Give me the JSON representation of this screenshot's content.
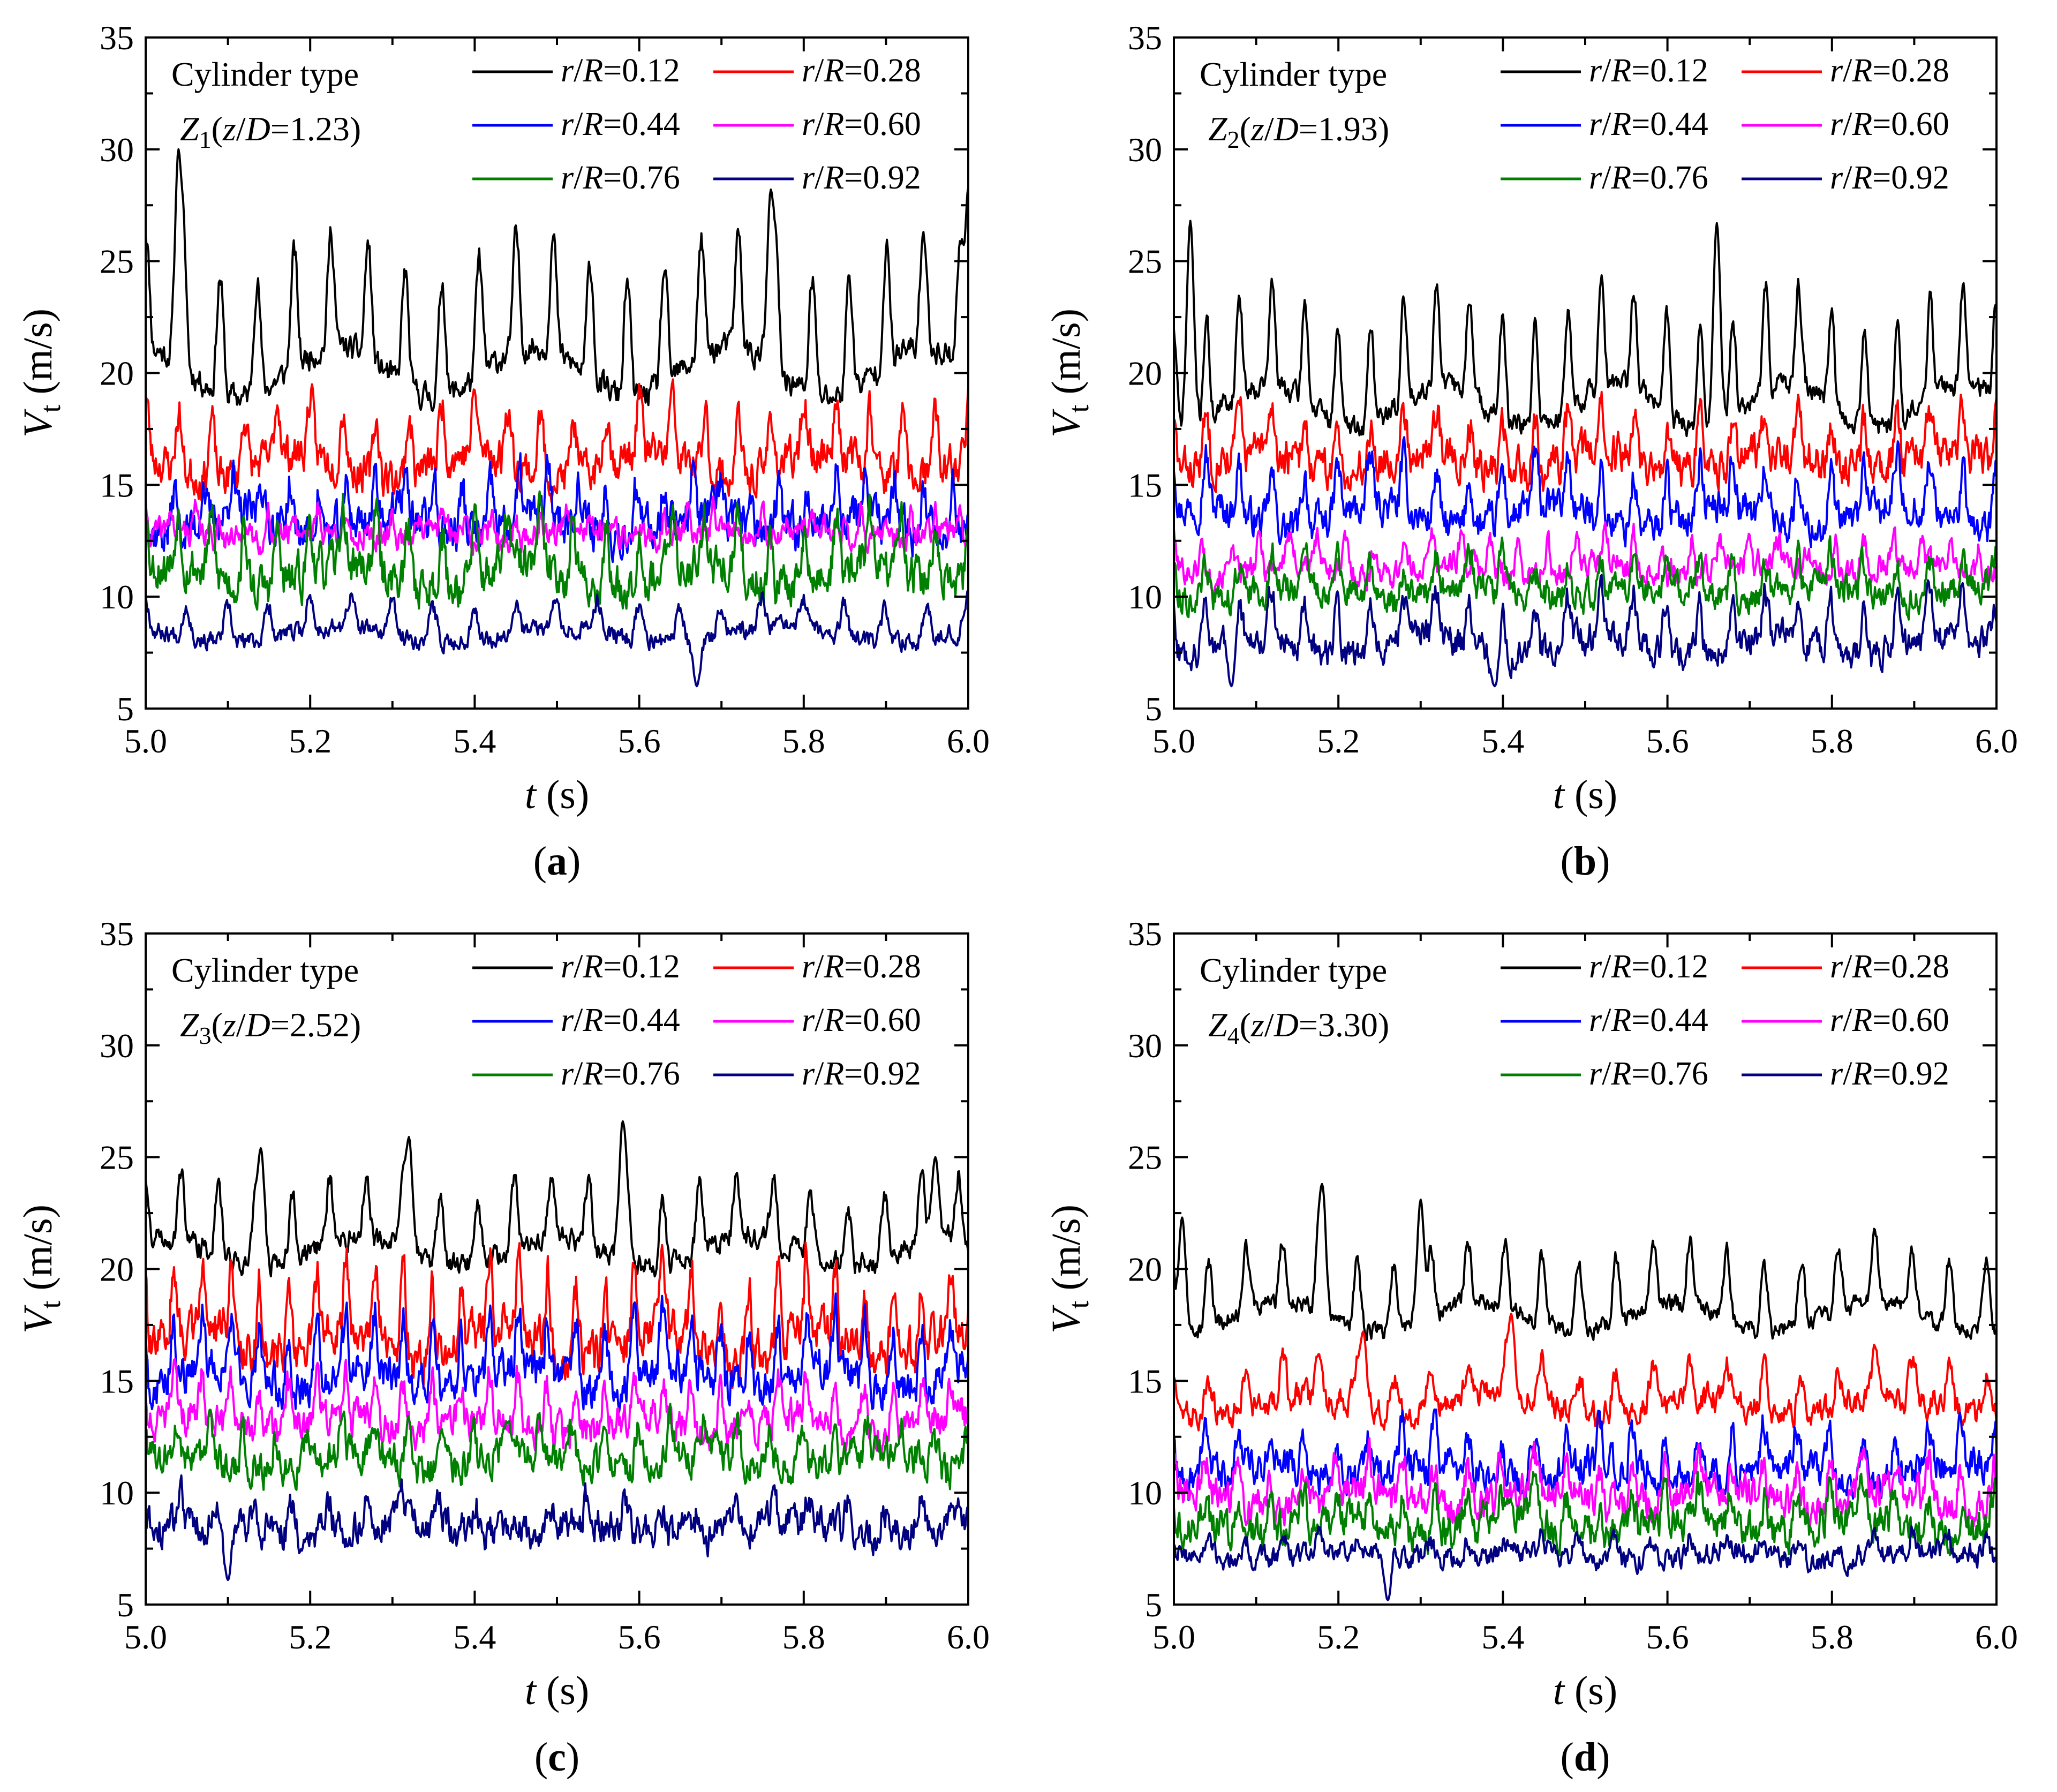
{
  "colors": {
    "r012": "#000000",
    "r028": "#ff0000",
    "r044": "#0000ff",
    "r060": "#ff00ff",
    "r076": "#008000",
    "r092": "#000080"
  },
  "chart_data": [
    {
      "type": "line",
      "panel_label": "(a)",
      "label_letter": "a",
      "annotation_line1": "Cylinder type",
      "annotation_line2": {
        "var": "Z",
        "sub": "1",
        "open": "(",
        "z": "z",
        "slash": "/",
        "D": "D",
        "eq": "=1.23)"
      },
      "xlabel": {
        "var": "t",
        "unit": " (s)"
      },
      "ylabel": {
        "var": "V",
        "sub": "t",
        "unit": " (m/s)"
      },
      "xlim": [
        5.0,
        6.0
      ],
      "ylim": [
        5,
        35
      ],
      "xticks": [
        "5.0",
        "5.2",
        "5.4",
        "5.6",
        "5.8",
        "6.0"
      ],
      "yticks": [
        "5",
        "10",
        "15",
        "20",
        "25",
        "30",
        "35"
      ],
      "legend_position": "top-right",
      "series": [
        {
          "name": "r/R=0.12",
          "key": "r012",
          "mean": 21.5,
          "amp": 3.2,
          "period": 0.045,
          "noise": 0.6,
          "seed": 11,
          "peaks": [
            [
              5.04,
              30.0
            ],
            [
              5.76,
              28.2
            ],
            [
              6.0,
              28.3
            ]
          ]
        },
        {
          "name": "r/R=0.28",
          "key": "r028",
          "mean": 16.6,
          "amp": 1.6,
          "period": 0.04,
          "noise": 0.9,
          "seed": 23,
          "peaks": []
        },
        {
          "name": "r/R=0.44",
          "key": "r044",
          "mean": 13.8,
          "amp": 1.2,
          "period": 0.035,
          "noise": 1.0,
          "seed": 37,
          "peaks": []
        },
        {
          "name": "r/R=0.60",
          "key": "r060",
          "mean": 13.0,
          "amp": 0.6,
          "period": 0.03,
          "noise": 0.6,
          "seed": 41,
          "peaks": []
        },
        {
          "name": "r/R=0.76",
          "key": "r076",
          "mean": 11.6,
          "amp": 1.5,
          "period": 0.04,
          "noise": 1.0,
          "seed": 53,
          "peaks": []
        },
        {
          "name": "r/R=0.92",
          "key": "r092",
          "mean": 8.7,
          "amp": 0.9,
          "period": 0.05,
          "noise": 0.4,
          "seed": 67,
          "peaks": [
            [
              5.67,
              6.0
            ]
          ]
        }
      ]
    },
    {
      "type": "line",
      "panel_label": "(b)",
      "label_letter": "b",
      "annotation_line1": "Cylinder type",
      "annotation_line2": {
        "var": "Z",
        "sub": "2",
        "open": "(",
        "z": "z",
        "slash": "/",
        "D": "D",
        "eq": "=1.93)"
      },
      "xlabel": {
        "var": "t",
        "unit": " (s)"
      },
      "ylabel": {
        "var": "V",
        "sub": "t",
        "unit": " (m/s)"
      },
      "xlim": [
        5.0,
        6.0
      ],
      "ylim": [
        5,
        35
      ],
      "xticks": [
        "5.0",
        "5.2",
        "5.4",
        "5.6",
        "5.8",
        "6.0"
      ],
      "yticks": [
        "5",
        "10",
        "15",
        "20",
        "25",
        "30",
        "35"
      ],
      "legend_position": "top-right",
      "series": [
        {
          "name": "r/R=0.12",
          "key": "r012",
          "mean": 19.8,
          "amp": 2.8,
          "period": 0.04,
          "noise": 0.5,
          "seed": 71,
          "peaks": [
            [
              5.02,
              26.8
            ],
            [
              5.66,
              26.7
            ]
          ]
        },
        {
          "name": "r/R=0.28",
          "key": "r028",
          "mean": 16.6,
          "amp": 1.3,
          "period": 0.04,
          "noise": 0.9,
          "seed": 83,
          "peaks": []
        },
        {
          "name": "r/R=0.44",
          "key": "r044",
          "mean": 14.2,
          "amp": 1.4,
          "period": 0.04,
          "noise": 0.8,
          "seed": 97,
          "peaks": []
        },
        {
          "name": "r/R=0.60",
          "key": "r060",
          "mean": 11.6,
          "amp": 0.8,
          "period": 0.035,
          "noise": 0.6,
          "seed": 101,
          "peaks": []
        },
        {
          "name": "r/R=0.76",
          "key": "r076",
          "mean": 10.6,
          "amp": 0.9,
          "period": 0.04,
          "noise": 0.7,
          "seed": 113,
          "peaks": []
        },
        {
          "name": "r/R=0.92",
          "key": "r092",
          "mean": 8.4,
          "amp": 1.3,
          "period": 0.04,
          "noise": 0.7,
          "seed": 127,
          "peaks": [
            [
              5.07,
              6.0
            ],
            [
              5.39,
              6.0
            ]
          ]
        }
      ]
    },
    {
      "type": "line",
      "panel_label": "(c)",
      "label_letter": "c",
      "annotation_line1": "Cylinder type",
      "annotation_line2": {
        "var": "Z",
        "sub": "3",
        "open": "(",
        "z": "z",
        "slash": "/",
        "D": "D",
        "eq": "=2.52)"
      },
      "xlabel": {
        "var": "t",
        "unit": " (s)"
      },
      "ylabel": {
        "var": "V",
        "sub": "t",
        "unit": " (m/s)"
      },
      "xlim": [
        5.0,
        6.0
      ],
      "ylim": [
        5,
        35
      ],
      "xticks": [
        "5.0",
        "5.2",
        "5.4",
        "5.6",
        "5.8",
        "6.0"
      ],
      "yticks": [
        "5",
        "10",
        "15",
        "20",
        "25",
        "30",
        "35"
      ],
      "legend_position": "top-right",
      "series": [
        {
          "name": "r/R=0.12",
          "key": "r012",
          "mean": 21.6,
          "amp": 1.8,
          "period": 0.045,
          "noise": 0.5,
          "seed": 131,
          "peaks": [
            [
              5.14,
              25.4
            ],
            [
              5.32,
              25.9
            ],
            [
              5.58,
              26.6
            ],
            [
              5.96,
              25.0
            ]
          ]
        },
        {
          "name": "r/R=0.28",
          "key": "r028",
          "mean": 17.6,
          "amp": 2.0,
          "period": 0.035,
          "noise": 1.0,
          "seed": 139,
          "peaks": []
        },
        {
          "name": "r/R=0.44",
          "key": "r044",
          "mean": 15.8,
          "amp": 1.6,
          "period": 0.035,
          "noise": 0.9,
          "seed": 149,
          "peaks": []
        },
        {
          "name": "r/R=0.60",
          "key": "r060",
          "mean": 13.6,
          "amp": 1.2,
          "period": 0.035,
          "noise": 0.8,
          "seed": 151,
          "peaks": []
        },
        {
          "name": "r/R=0.76",
          "key": "r076",
          "mean": 11.8,
          "amp": 1.0,
          "period": 0.04,
          "noise": 0.8,
          "seed": 163,
          "peaks": []
        },
        {
          "name": "r/R=0.92",
          "key": "r092",
          "mean": 8.7,
          "amp": 0.7,
          "period": 0.045,
          "noise": 0.8,
          "seed": 173,
          "peaks": [
            [
              5.1,
              6.1
            ]
          ]
        }
      ]
    },
    {
      "type": "line",
      "panel_label": "(d)",
      "label_letter": "d",
      "annotation_line1": "Cylinder type",
      "annotation_line2": {
        "var": "Z",
        "sub": "4",
        "open": "(",
        "z": "z",
        "slash": "/",
        "D": "D",
        "eq": "=3.30)"
      },
      "xlabel": {
        "var": "t",
        "unit": " (s)"
      },
      "ylabel": {
        "var": "V",
        "sub": "t",
        "unit": " (m/s)"
      },
      "xlim": [
        5.0,
        6.0
      ],
      "ylim": [
        5,
        35
      ],
      "xticks": [
        "5.0",
        "5.2",
        "5.4",
        "5.6",
        "5.8",
        "6.0"
      ],
      "yticks": [
        "5",
        "10",
        "15",
        "20",
        "25",
        "30",
        "35"
      ],
      "legend_position": "top-right",
      "series": [
        {
          "name": "r/R=0.12",
          "key": "r012",
          "mean": 18.7,
          "amp": 1.8,
          "period": 0.045,
          "noise": 0.4,
          "seed": 181,
          "peaks": [
            [
              5.01,
              22.3
            ],
            [
              5.18,
              23.8
            ],
            [
              5.3,
              23.1
            ]
          ]
        },
        {
          "name": "r/R=0.28",
          "key": "r028",
          "mean": 14.4,
          "amp": 1.1,
          "period": 0.045,
          "noise": 0.6,
          "seed": 191,
          "peaks": [
            [
              5.23,
              17.2
            ],
            [
              5.41,
              18.0
            ]
          ]
        },
        {
          "name": "r/R=0.44",
          "key": "r044",
          "mean": 11.4,
          "amp": 1.1,
          "period": 0.04,
          "noise": 0.8,
          "seed": 193,
          "peaks": []
        },
        {
          "name": "r/R=0.60",
          "key": "r060",
          "mean": 10.2,
          "amp": 1.0,
          "period": 0.04,
          "noise": 0.8,
          "seed": 197,
          "peaks": []
        },
        {
          "name": "r/R=0.76",
          "key": "r076",
          "mean": 8.9,
          "amp": 0.9,
          "period": 0.04,
          "noise": 0.8,
          "seed": 199,
          "peaks": []
        },
        {
          "name": "r/R=0.92",
          "key": "r092",
          "mean": 7.4,
          "amp": 0.5,
          "period": 0.045,
          "noise": 0.5,
          "seed": 211,
          "peaks": [
            [
              5.26,
              5.2
            ]
          ]
        }
      ]
    }
  ]
}
